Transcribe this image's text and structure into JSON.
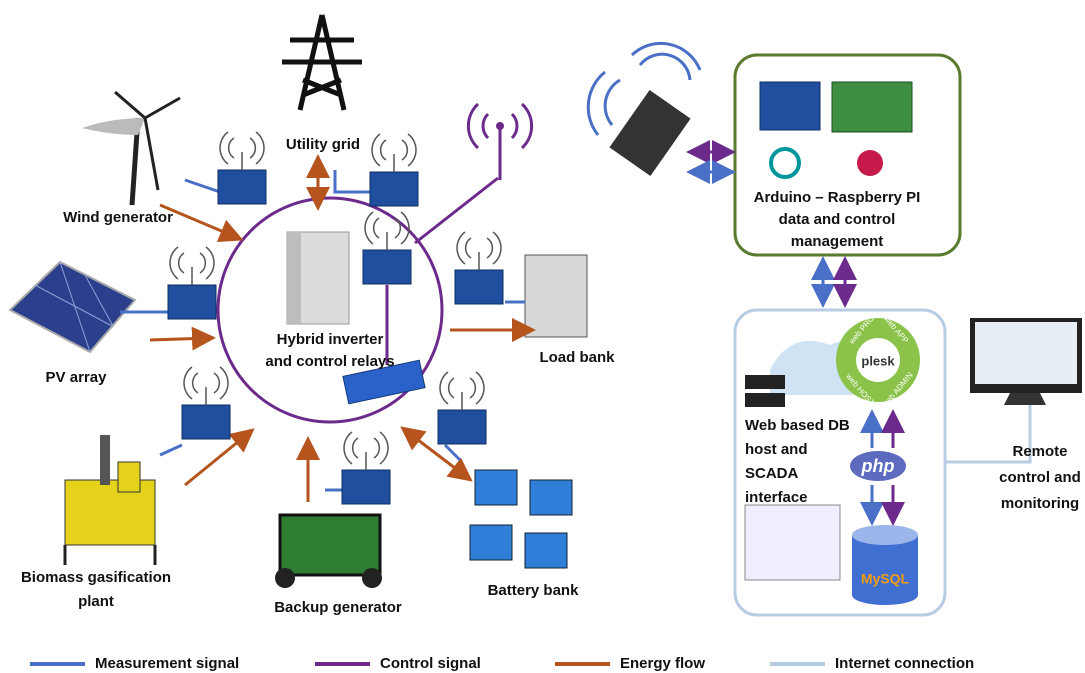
{
  "nodes": [
    {
      "label": [
        "Utility grid"
      ]
    },
    {
      "label": [
        "Wind generator"
      ]
    },
    {
      "label": [
        "PV array"
      ]
    },
    {
      "label": [
        "Hybrid inverter",
        "and control relays"
      ]
    },
    {
      "label": [
        "Load bank"
      ]
    },
    {
      "label": [
        "Biomass gasification",
        "plant"
      ]
    },
    {
      "label": [
        "Backup generator"
      ]
    },
    {
      "label": [
        "Battery bank"
      ]
    },
    {
      "label": [
        "Arduino – Raspberry PI",
        "data and control",
        "management"
      ]
    },
    {
      "label": [
        "Web based DB",
        "host and",
        "SCADA",
        "interface"
      ]
    },
    {
      "label": [
        "Remote",
        "control and",
        "monitoring"
      ]
    }
  ],
  "host": {
    "plesk": "plesk",
    "segments": [
      "web PRO",
      "web APP",
      "web HOST",
      "web ADMIN"
    ],
    "php": "php",
    "db": "MySQL"
  },
  "legend": [
    {
      "label": "Measurement signal",
      "color": "#4a6fc7"
    },
    {
      "label": "Control signal",
      "color": "#6b2a8c"
    },
    {
      "label": "Energy flow",
      "color": "#b5541c"
    },
    {
      "label": "Internet connection",
      "color": "#b8cce4"
    }
  ]
}
